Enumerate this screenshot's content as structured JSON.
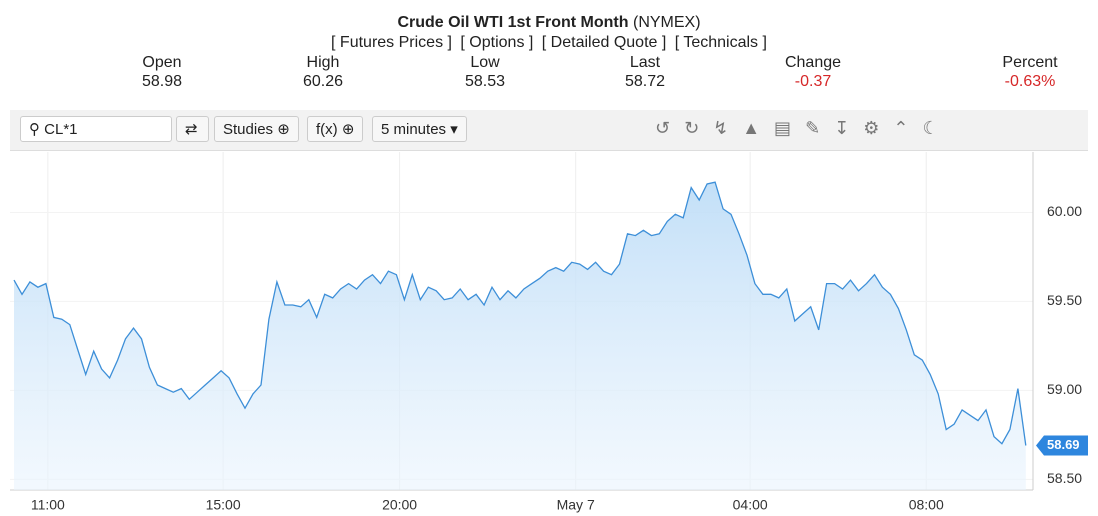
{
  "header": {
    "title": "Crude Oil WTI 1st Front Month",
    "exchange": "(NYMEX)",
    "links": [
      "[ Futures Prices ]",
      "[ Options ]",
      "[ Detailed Quote ]",
      "[ Technicals ]"
    ]
  },
  "quote": [
    {
      "label": "Open",
      "value": "58.98"
    },
    {
      "label": "High",
      "value": "60.26"
    },
    {
      "label": "Low",
      "value": "58.53"
    },
    {
      "label": "Last",
      "value": "58.72"
    },
    {
      "label": "Change",
      "value": "-0.37"
    },
    {
      "label": "Percent",
      "value": "-0.63%"
    }
  ],
  "toolbar": {
    "symbol": "CL*1",
    "studies": "Studies",
    "fx": "f(x)",
    "interval": "5 minutes"
  },
  "chart_data": {
    "type": "line",
    "color": "#3d8fd8",
    "grid": true,
    "values": [
      59.62,
      59.54,
      59.61,
      59.58,
      59.6,
      59.41,
      59.4,
      59.37,
      59.23,
      59.09,
      59.22,
      59.12,
      59.07,
      59.17,
      59.29,
      59.35,
      59.29,
      59.13,
      59.03,
      59.01,
      58.99,
      59.01,
      58.95,
      58.99,
      59.03,
      59.07,
      59.11,
      59.07,
      58.98,
      58.9,
      58.98,
      59.03,
      59.4,
      59.61,
      59.48,
      59.48,
      59.47,
      59.51,
      59.41,
      59.54,
      59.52,
      59.57,
      59.6,
      59.57,
      59.62,
      59.65,
      59.6,
      59.67,
      59.65,
      59.51,
      59.65,
      59.51,
      59.58,
      59.56,
      59.51,
      59.52,
      59.57,
      59.51,
      59.54,
      59.48,
      59.58,
      59.51,
      59.56,
      59.52,
      59.57,
      59.6,
      59.63,
      59.67,
      59.69,
      59.67,
      59.72,
      59.71,
      59.68,
      59.72,
      59.67,
      59.65,
      59.71,
      59.88,
      59.87,
      59.9,
      59.87,
      59.88,
      59.95,
      59.99,
      59.97,
      60.14,
      60.07,
      60.16,
      60.17,
      60.02,
      59.99,
      59.88,
      59.76,
      59.6,
      59.54,
      59.54,
      59.52,
      59.57,
      59.39,
      59.43,
      59.47,
      59.34,
      59.6,
      59.6,
      59.57,
      59.62,
      59.56,
      59.6,
      59.65,
      59.58,
      59.54,
      59.46,
      59.34,
      59.2,
      59.17,
      59.09,
      58.98,
      58.78,
      58.81,
      58.89,
      58.86,
      58.83,
      58.89,
      58.74,
      58.7,
      58.78,
      59.01,
      58.69
    ],
    "last_price": 58.69,
    "xlim": [
      -0.5,
      127.9
    ],
    "xticks": [
      {
        "value": 4.25,
        "label": "11:00"
      },
      {
        "value": 26.25,
        "label": "15:00"
      },
      {
        "value": 48.4,
        "label": "20:00"
      },
      {
        "value": 70.5,
        "label": "May 7"
      },
      {
        "value": 92.4,
        "label": "04:00"
      },
      {
        "value": 114.5,
        "label": "08:00"
      }
    ],
    "ylim": [
      58.44,
      60.34
    ],
    "yticks": [
      {
        "value": 58.5,
        "label": "58.50"
      },
      {
        "value": 59,
        "label": "59.00"
      },
      {
        "value": 59.5,
        "label": "59.50"
      },
      {
        "value": 60,
        "label": "60.00"
      }
    ]
  }
}
